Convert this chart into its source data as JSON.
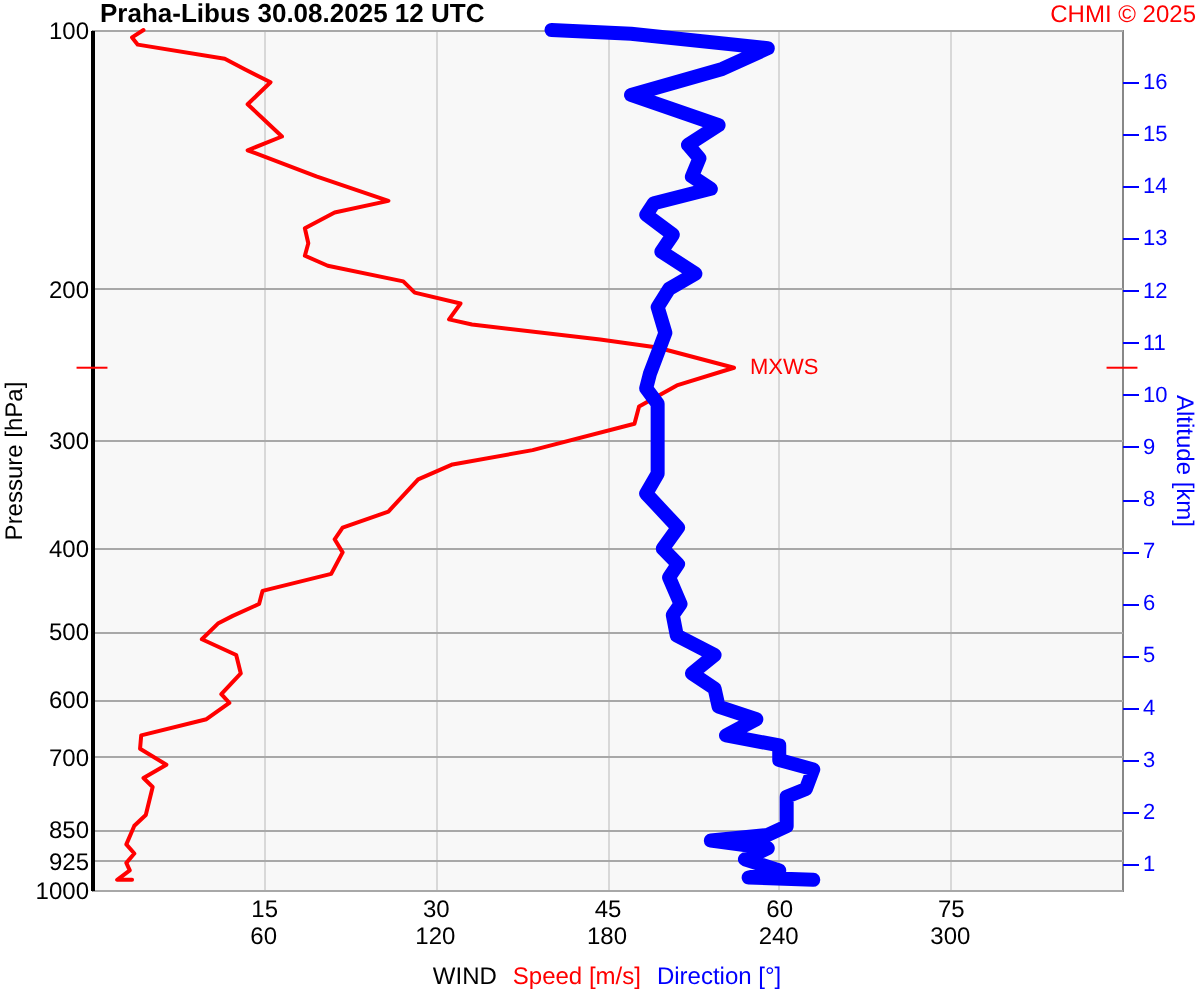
{
  "chart_data": {
    "type": "line",
    "title": "Praha-Libus    30.08.2025 12 UTC",
    "xlabel": "WIND",
    "ylabel": "Pressure [hPa]",
    "y2label": "Altitude [km]",
    "xlim": [
      0,
      90
    ],
    "xticks": [
      15,
      30,
      45,
      60,
      75
    ],
    "x2lim": [
      0,
      360
    ],
    "x2ticks": [
      60,
      120,
      180,
      240,
      300
    ],
    "ylim": [
      1000,
      100
    ],
    "yticks": [
      100,
      200,
      300,
      400,
      500,
      600,
      700,
      850,
      925,
      1000
    ],
    "y2lim": [
      0.5,
      17
    ],
    "y2ticks": [
      1,
      2,
      3,
      4,
      5,
      6,
      7,
      8,
      9,
      10,
      11,
      12,
      13,
      14,
      15,
      16
    ],
    "log": "y",
    "grid": true,
    "legend": "bottom",
    "series": [
      {
        "name": "Speed [m/s]",
        "color": "#ff0000",
        "x": [
          4.5,
          3.5,
          4.0,
          11.6,
          13.3,
          15.6,
          13.6,
          16.6,
          13.6,
          19.6,
          25.9,
          21.2,
          18.6,
          18.9,
          18.6,
          20.6,
          27.2,
          28.2,
          32.2,
          31.2,
          33.2,
          44.4,
          49.4,
          56.1,
          51.1,
          47.8,
          47.4,
          38.5,
          31.5,
          28.5,
          25.9,
          21.9,
          21.2,
          21.9,
          20.9,
          14.9,
          14.6,
          12.3,
          11.0,
          9.6,
          12.6,
          13.0,
          11.3,
          12.0,
          10.0,
          4.3,
          4.2,
          6.5,
          4.5,
          5.3,
          4.7,
          3.7,
          3.0,
          3.7,
          3.0,
          3.3,
          2.2,
          3.5
        ],
        "values": [
          100,
          102,
          104,
          108,
          111,
          115,
          122,
          133,
          138,
          148,
          158,
          163,
          170,
          177,
          183,
          188,
          196,
          202,
          208,
          217,
          220,
          229,
          234,
          247,
          259,
          274,
          287,
          308,
          320,
          333,
          363,
          379,
          391,
          405,
          429,
          449,
          465,
          480,
          490,
          511,
          533,
          560,
          592,
          606,
          633,
          661,
          685,
          715,
          741,
          759,
          818,
          842,
          885,
          907,
          930,
          949,
          973,
          973
        ]
      },
      {
        "name": "Direction [°]",
        "color": "#0000ff",
        "axis": "x2",
        "x": [
          160.6,
          188.4,
          236.2,
          220.3,
          188.4,
          219.0,
          208.3,
          212.3,
          209.7,
          216.3,
          196.4,
          193.7,
          203.0,
          199.0,
          210.9,
          201.7,
          197.7,
          200.4,
          195.0,
          193.7,
          197.7,
          197.7,
          193.7,
          204.8,
          199.5,
          204.8,
          201.7,
          205.7,
          203.0,
          204.4,
          217.6,
          209.7,
          217.6,
          219.0,
          232.2,
          221.6,
          240.2,
          240.2,
          252.1,
          249.5,
          242.8,
          242.8,
          236.2,
          216.3,
          236.2,
          228.2,
          240.2,
          229.5,
          252.1
        ],
        "values": [
          100,
          101,
          105,
          111,
          119,
          129,
          136,
          141,
          148,
          153,
          159,
          164,
          173,
          181,
          192,
          200,
          210,
          225,
          251,
          261,
          272,
          328,
          346,
          379,
          401,
          418,
          433,
          465,
          479,
          506,
          533,
          560,
          583,
          612,
          633,
          661,
          679,
          706,
          724,
          763,
          779,
          843,
          863,
          876,
          894,
          921,
          949,
          967,
          973
        ]
      }
    ],
    "annotations": [
      {
        "text": "MXWS",
        "x": 56.1,
        "y": 247
      },
      "CHMI © 2025"
    ]
  }
}
